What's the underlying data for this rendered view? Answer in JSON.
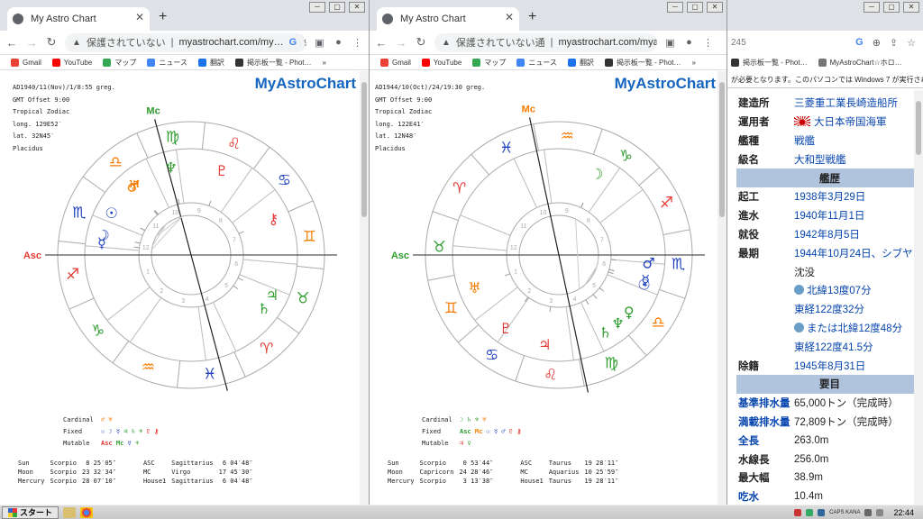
{
  "browser1": {
    "tab_title": "My Astro Chart",
    "insecure_label": "保護されていない",
    "url": "myastrochart.com/my…",
    "bookmarks": [
      "Gmail",
      "YouTube",
      "マップ",
      "ニュース",
      "翻訳",
      "掲示板一覧 - Phot…"
    ],
    "more": "»",
    "info": [
      "AD1940/11(Nov)/1/8:55 greg.",
      "GMT Offset 9:00",
      "Tropical Zodiac",
      "long. 129E52′",
      "lat. 32N45′",
      "Placidus"
    ],
    "brand": "MyAstroChart",
    "asc_label": "Asc",
    "mc_label": "Mc",
    "legend": {
      "cardinal": "Cardinal",
      "fixed": "Fixed",
      "mutable": "Mutable",
      "asc": "Asc",
      "mc": "Mc"
    },
    "table": [
      [
        "Sun",
        "Scorpio",
        "8 25′05″",
        "ASC",
        "Sagittarius",
        "6 04′48″"
      ],
      [
        "Moon",
        "Scorpio",
        "23 32′34″",
        "MC",
        "Virgo",
        "17 45′30″"
      ],
      [
        "Mercury",
        "Scorpio",
        "28 07′10″",
        "House1",
        "Sagittarius",
        "6 04′48″"
      ]
    ]
  },
  "browser2": {
    "tab_title": "My Astro Chart",
    "insecure_label": "保護されていない通",
    "url": "myastrochart.com/myas…",
    "bookmarks": [
      "Gmail",
      "YouTube",
      "マップ",
      "ニュース",
      "翻訳",
      "掲示板一覧 - Phot…"
    ],
    "more": "»",
    "info": [
      "AD1944/10(Oct)/24/19:30 greg.",
      "GMT Offset 9:00",
      "Tropical Zodiac",
      "long. 122E41′",
      "lat. 12N48′",
      "Placidus"
    ],
    "brand": "MyAstroChart",
    "asc_label": "Asc",
    "mc_label": "Mc",
    "legend": {
      "cardinal": "Cardinal",
      "fixed": "Fixed",
      "mutable": "Mutable",
      "asc": "Asc",
      "mc": "Mc"
    },
    "table": [
      [
        "Sun",
        "Scorpio",
        "0 53′44″",
        "ASC",
        "Taurus",
        "19 28′11″"
      ],
      [
        "Moon",
        "Capricorn",
        "24 28′46″",
        "MC",
        "Aquarius",
        "10 25′59″"
      ],
      [
        "Mercury",
        "Scorpio",
        "3 13′38″",
        "House1",
        "Taurus",
        "19 28′11″"
      ]
    ]
  },
  "browser3": {
    "url_fragment": "245",
    "bookmarks": [
      "掲示板一覧 - Phot…",
      "MyAstroChart☆ホロ…"
    ],
    "banner": "が必要となります。このパソコンでは Windows 7 が実行されていま",
    "rows": [
      {
        "k": "建造所",
        "v": "三菱重工業長崎造船所",
        "link": true
      },
      {
        "k": "運用者",
        "v": "大日本帝国海軍",
        "link": true,
        "flag": true
      },
      {
        "k": "艦種",
        "v": "戦艦",
        "link": true
      },
      {
        "k": "級名",
        "v": "大和型戦艦",
        "link": true
      },
      {
        "section": "艦歴"
      },
      {
        "k": "起工",
        "v": "1938年3月29日",
        "link": true
      },
      {
        "k": "進水",
        "v": "1940年11月1日",
        "link": true
      },
      {
        "k": "就役",
        "v": "1942年8月5日",
        "link": true
      },
      {
        "k": "最期",
        "v": "1944年10月24日、シブヤ",
        "link": true
      },
      {
        "k": "",
        "v": "沈没",
        "link": false
      },
      {
        "k": "",
        "v": "北緯13度07分",
        "link": true,
        "globe": true
      },
      {
        "k": "",
        "v": "東経122度32分",
        "link": true
      },
      {
        "k": "",
        "v": "または北緯12度48分",
        "link": true,
        "globe": true
      },
      {
        "k": "",
        "v": "東経122度41.5分",
        "link": true
      },
      {
        "k": "除籍",
        "v": "1945年8月31日",
        "link": true
      },
      {
        "section": "要目"
      },
      {
        "k": "基準排水量",
        "v": "65,000トン（完成時）",
        "link": false,
        "klink": true
      },
      {
        "k": "満載排水量",
        "v": "72,809トン（完成時）",
        "link": false,
        "klink": true
      },
      {
        "k": "全長",
        "v": "263.0m",
        "link": false,
        "klink": true
      },
      {
        "k": "水線長",
        "v": "256.0m",
        "link": false
      },
      {
        "k": "最大幅",
        "v": "38.9m",
        "link": false
      },
      {
        "k": "吃水",
        "v": "10.4m",
        "link": false,
        "klink": true
      }
    ]
  },
  "taskbar": {
    "start": "スタート",
    "clock": "22:44",
    "ime": "CAPS KANA"
  },
  "colors": {
    "fire": "#e53935",
    "earth": "#2e9d2e",
    "air": "#f57c00",
    "water": "#1e3fbf",
    "brand": "#1565c0"
  }
}
